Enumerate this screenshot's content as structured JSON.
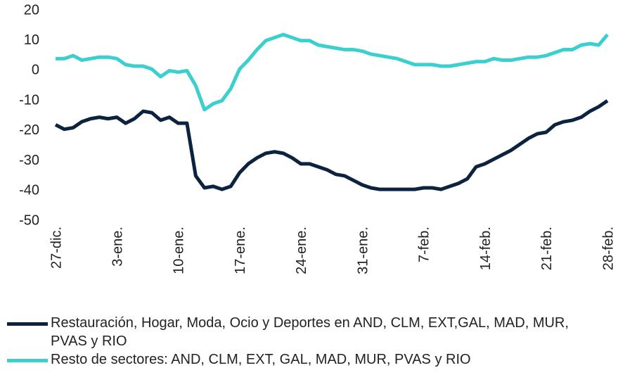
{
  "chart_data": {
    "type": "line",
    "categories": [
      "27-dic.",
      null,
      null,
      null,
      null,
      null,
      null,
      "3-ene.",
      null,
      null,
      null,
      null,
      null,
      null,
      "10-ene.",
      null,
      null,
      null,
      null,
      null,
      null,
      "17-ene.",
      null,
      null,
      null,
      null,
      null,
      null,
      "24-ene.",
      null,
      null,
      null,
      null,
      null,
      null,
      "31-ene.",
      null,
      null,
      null,
      null,
      null,
      null,
      "7-feb.",
      null,
      null,
      null,
      null,
      null,
      null,
      "14-feb.",
      null,
      null,
      null,
      null,
      null,
      null,
      "21-feb.",
      null,
      null,
      null,
      null,
      null,
      null,
      "28-feb."
    ],
    "series": [
      {
        "name": "Restauración, Hogar, Moda, Ocio y Deportes en AND, CLM, EXT,GAL, MAD, MUR, PVAS  y RIO",
        "color": "#0c2340",
        "values": [
          -18,
          -19.5,
          -19,
          -17,
          -16,
          -15.5,
          -16,
          -15.5,
          -17.5,
          -16,
          -13.5,
          -14,
          -16.5,
          -15.5,
          -17.5,
          -17.5,
          -35,
          -39,
          -38.5,
          -39.5,
          -38.5,
          -34,
          -31,
          -29,
          -27.5,
          -27,
          -27.5,
          -29,
          -31,
          -31,
          -32,
          -33,
          -34.5,
          -35,
          -36.5,
          -38,
          -39,
          -39.5,
          -39.5,
          -39.5,
          -39.5,
          -39.5,
          -39,
          -39,
          -39.5,
          -38.5,
          -37.5,
          -36,
          -32,
          -31,
          -29.5,
          -28,
          -26.5,
          -24.5,
          -22.5,
          -21,
          -20.5,
          -18,
          -17,
          -16.5,
          -15.5,
          -13.5,
          -12,
          -10
        ]
      },
      {
        "name": "Resto de sectores: AND, CLM, EXT, GAL, MAD, MUR, PVAS y RIO",
        "color": "#3ccfcf",
        "values": [
          4,
          4,
          5,
          3.5,
          4,
          4.5,
          4.5,
          4,
          2,
          1.5,
          1.5,
          0.5,
          -2,
          0,
          -0.5,
          0,
          -5,
          -13,
          -11,
          -10,
          -6,
          0.5,
          3.5,
          7,
          10,
          11,
          12,
          11,
          10,
          10,
          8.5,
          8,
          7.5,
          7,
          7,
          6.5,
          5.5,
          5,
          4.5,
          4,
          3,
          2,
          2,
          2,
          1.5,
          1.5,
          2,
          2.5,
          3,
          3,
          4,
          3.5,
          3.5,
          4,
          4.5,
          4.5,
          5,
          6,
          7,
          7,
          8.5,
          9,
          8.5,
          12
        ]
      }
    ],
    "ylim": [
      -50,
      20
    ],
    "yticks": [
      -50,
      -40,
      -30,
      -20,
      -10,
      0,
      10,
      20
    ],
    "grid": false
  }
}
